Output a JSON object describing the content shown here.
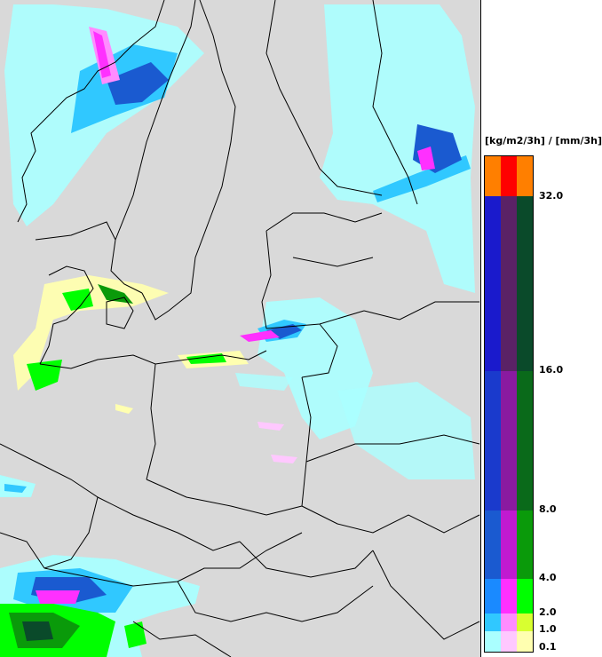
{
  "legend": {
    "title": "[kg/m2/3h] / [mm/3h]",
    "ticks": [
      "32.0",
      "16.0",
      "8.0",
      "4.0",
      "2.0",
      "1.0",
      "0.1"
    ],
    "bands": [
      {
        "from": 32.0,
        "to": null,
        "colors": [
          "#ff7f00",
          "#ff0000",
          "#ff7f00"
        ]
      },
      {
        "from": 16.0,
        "to": 32.0,
        "colors": [
          "#1a1acc",
          "#5a2266",
          "#0a4a2a"
        ]
      },
      {
        "from": 8.0,
        "to": 16.0,
        "colors": [
          "#1a3acc",
          "#8a1aa0",
          "#0a6a1a"
        ]
      },
      {
        "from": 4.0,
        "to": 8.0,
        "colors": [
          "#1a5ad0",
          "#c01ad0",
          "#0a9a0a"
        ]
      },
      {
        "from": 2.0,
        "to": 4.0,
        "colors": [
          "#1a8aff",
          "#ff30ff",
          "#00ff00"
        ]
      },
      {
        "from": 1.0,
        "to": 2.0,
        "colors": [
          "#30c8ff",
          "#ff8cff",
          "#d8ff30"
        ]
      },
      {
        "from": 0.1,
        "to": 1.0,
        "colors": [
          "#aaffff",
          "#ffc8ff",
          "#ffffb0"
        ]
      }
    ]
  },
  "map": {
    "background": "#d9d9d9",
    "precip_colors": {
      "rain_light": "#aaffff",
      "rain_med": "#30c8ff",
      "rain_heavy": "#1a5ad0",
      "mix_med": "#ff30ff",
      "mix_heavy": "#8a1aa0",
      "snow_light": "#ffffb0",
      "snow_med": "#00ff00",
      "snow_heavy": "#0a6a1a"
    }
  }
}
